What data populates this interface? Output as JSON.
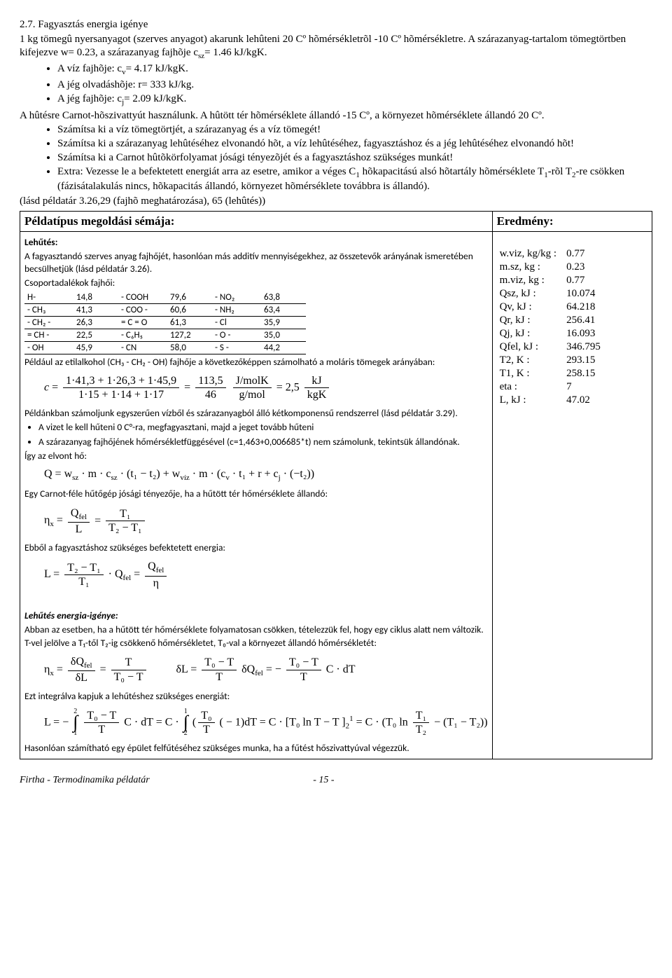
{
  "header": {
    "title": "2.7. Fagyasztás energia igénye",
    "intro1_a": "1 kg tömegû nyersanyagot (szerves anyagot) akarunk lehûteni 20 Cº hõmérsékletrõl -10 Cº hõmérsékletre.",
    "intro1_b": "A szárazanyag-tartalom tömegtörtben kifejezve w= 0.23, a szárazanyag fajhõje c",
    "intro1_sub": "sz",
    "intro1_c": "= 1.46 kJ/kgK.",
    "bul1_a": "A víz fajhõje: c",
    "bul1_sub": "v",
    "bul1_b": "= 4.17 kJ/kgK.",
    "bul2": "A jég olvadáshõje: r= 333 kJ/kg.",
    "bul3_a": "A jég fajhõje: c",
    "bul3_sub": "j",
    "bul3_b": "= 2.09 kJ/kgK.",
    "intro2_a": "A hûtésre Carnot-hõszivattyút használunk. A hûtött tér hõmérséklete állandó -15 Cº, a környezet hõmérséklete állandó 20 Cº.",
    "task1": "Számítsa ki a víz tömegtörtjét, a szárazanyag és a víz tömegét!",
    "task2": "Számítsa ki a szárazanyag lehûtéséhez elvonandó hõt, a víz lehûtéséhez, fagyasztáshoz és a jég lehûtéséhez elvonandó hõt!",
    "task3": "Számítsa ki a Carnot hûtõkörfolyamat jósági tényezõjét és a fagyasztáshoz szükséges munkát!",
    "task4_a": "Extra: Vezesse le a befektetett energiát arra az esetre, amikor a véges C",
    "task4_b": " hõkapacitású alsó hõtartály hõmérséklete T",
    "task4_c": "-rõl T",
    "task4_d": "-re csökken (fázisátalakulás nincs, hõkapacitás állandó, környezet hõmérséklete továbbra is állandó).",
    "ref": "(lásd példatár 3.26,29 (fajhõ meghatározása), 65 (lehûtés))"
  },
  "table_header_left": "Példatípus megoldási sémája:",
  "table_header_right": "Eredmény:",
  "calibri": {
    "lehutes_hdr": "Lehűtés:",
    "p1": "A fagyasztandó szerves anyag fajhőjét, hasonlóan más additív mennyiségekhez, az összetevők arányának ismeretében becsülhetjük (lásd példatár 3.26).",
    "p2": "Csoportadalékok fajhői:",
    "p3": "Például az etilalkohol (CH₃ - CH₂ - OH) fajhője a következőképpen számolható a moláris tömegek arányában:",
    "p4": "Példánkban számoljunk egyszerűen vízből és szárazanyagból álló kétkomponensű rendszerrel (lásd példatár 3.29).",
    "li1": "A vizet le kell hűteni 0 C°-ra, megfagyasztani, majd a jeget tovább hűteni",
    "li2": "A szárazanyag fajhőjének hőmérsékletfüggésével (c=1,463+0,006685*t) nem számolunk, tekintsük állandónak.",
    "p5": "Így az elvont hő:",
    "p6": "Egy Carnot-féle hűtőgép jósági tényezője, ha a hűtött tér hőmérséklete állandó:",
    "p7": "Ebből a fagyasztáshoz szükséges befektetett energia:",
    "igeny_hdr": "Lehűtés energia-igénye:",
    "p8": "Abban az esetben, ha a hűtött tér hőmérséklete folyamatosan csökken, tételezzük fel, hogy egy ciklus alatt nem változik. T-vel jelölve a T₁-től T₂-ig csökkenő hőmérsékletet, T₀-val a környezet állandó hőmérsékletét:",
    "p9": "Ezt integrálva kapjuk a lehűtéshez szükséges energiát:",
    "p10": "Hasonlóan számítható egy épület felfűtéséhez szükséges munka, ha a fűtést hőszivattyúval végezzük."
  },
  "groups": {
    "rows": [
      [
        "H-",
        "14,8",
        "- COOH",
        "79,6",
        "- NO₂",
        "63,8"
      ],
      [
        "- CH₃",
        "41,3",
        "- COO -",
        "60,6",
        "- NH₂",
        "63,4"
      ],
      [
        "- CH₂ -",
        "26,3",
        "= C = O",
        "61,3",
        "- Cl",
        "35,9"
      ],
      [
        "= CH -",
        "22,5",
        "- C₆H₅",
        "127,2",
        "- O -",
        "35,0"
      ],
      [
        "- OH",
        "45,9",
        "- CN",
        "58,0",
        "- S -",
        "44,2"
      ]
    ]
  },
  "formulas": {
    "c_top": "1·41,3 + 1·26,3 + 1·45,9",
    "c_bot": "1·15 + 1·14 + 1·17",
    "c_mid_top": "113,5",
    "c_mid_bot": "46",
    "c_unit_top": "J/molK",
    "c_unit_bot": "g/mol",
    "c_rhs_top": "kJ",
    "c_rhs_bot": "kgK",
    "Q_expr": "Q = w<sub class=\"ssub\">sz</sub> · m · c<sub class=\"ssub\">sz</sub> · (t₁ − t₂) + w<sub class=\"ssub\">víz</sub> · m · (c<sub class=\"ssub\">v</sub> · t₁ + r + c<sub class=\"ssub\">j</sub> · (−t₂))",
    "eta_lhs": "η<sub class=\"ssub\">x</sub> =",
    "eta_f1_top": "Q<sub class=\"ssub\">fel</sub>",
    "eta_f1_bot": "L",
    "eta_f2_top": "T₁",
    "eta_f2_bot": "T₂ − T₁",
    "L_lhs": "L =",
    "L_f1_top": "T₂ − T₁",
    "L_f1_bot": "T₁",
    "L_mid": "· Q<sub class=\"ssub\">fel</sub> =",
    "L_f2_top": "Q<sub class=\"ssub\">fel</sub>",
    "L_f2_bot": "η",
    "eta2_lhs": "η<sub class=\"ssub\">x</sub> =",
    "eta2_f1_top": "δQ<sub class=\"ssub\">fel</sub>",
    "eta2_f1_bot": "δL",
    "eta2_f2_top": "T",
    "eta2_f2_bot": "T₀ − T",
    "dL_lhs": "δL =",
    "dL_f1_top": "T₀ − T",
    "dL_f1_bot": "T",
    "dL_mid": "δQ<sub class=\"ssub\">fel</sub> = −",
    "dL_rhs": "C · dT",
    "Lint_lhs": "L = −",
    "Lint_f_top": "T₀ − T",
    "Lint_f_bot": "T",
    "Lint_mid1": "C · dT = C ·",
    "Lint_f2_top": "T₀",
    "Lint_f2_bot": "T",
    "Lint_mid2": "( − 1)dT = C · [T₀ ln T − T ]",
    "Lint_rhs_pre": " = C · (T₀ ln",
    "Lint_rhs_frac_top": "T₁",
    "Lint_rhs_frac_bot": "T₂",
    "Lint_rhs_post": " − (T₁ − T₂))"
  },
  "results": [
    [
      "w.viz, kg/kg :",
      "0.77"
    ],
    [
      "m.sz, kg :",
      "0.23"
    ],
    [
      "m.viz, kg :",
      "0.77"
    ],
    [
      "Qsz, kJ :",
      "10.074"
    ],
    [
      "Qv, kJ :",
      "64.218"
    ],
    [
      "Qr, kJ :",
      "256.41"
    ],
    [
      "Qj, kJ :",
      "16.093"
    ],
    [
      "Qfel, kJ :",
      "346.795"
    ],
    [
      "T2, K :",
      "293.15"
    ],
    [
      "T1, K :",
      "258.15"
    ],
    [
      "eta :",
      "7"
    ],
    [
      "L, kJ :",
      "47.02"
    ]
  ],
  "footer": {
    "left": "Firtha - Termodinamika példatár",
    "page": "- 15 -"
  }
}
